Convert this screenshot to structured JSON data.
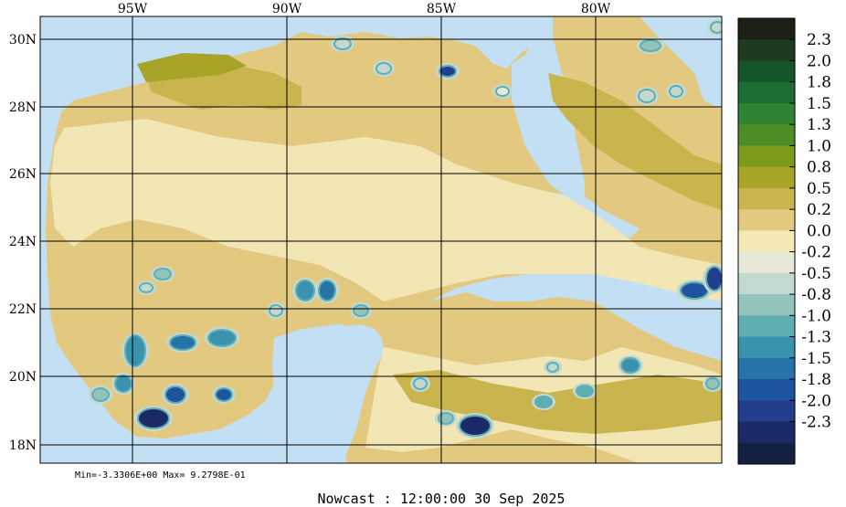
{
  "map": {
    "lon_labels": [
      "95W",
      "90W",
      "85W",
      "80W"
    ],
    "lat_labels": [
      "30N",
      "28N",
      "26N",
      "24N",
      "22N",
      "20N",
      "18N"
    ],
    "stats": "Min=-3.3306E+00  Max= 9.2798E-01",
    "footer": "Nowcast : 12:00:00  30 Sep 2025"
  },
  "colorbar": {
    "labels": [
      "2.3",
      "2.0",
      "1.8",
      "1.5",
      "1.3",
      "1.0",
      "0.8",
      "0.5",
      "0.2",
      "0.0",
      "-0.2",
      "-0.5",
      "-0.8",
      "-1.0",
      "-1.3",
      "-1.5",
      "-1.8",
      "-2.0",
      "-2.3"
    ],
    "colors": [
      "#1c2118",
      "#1e3b22",
      "#14542a",
      "#1c6e34",
      "#2f8433",
      "#4e8c26",
      "#7d9a1a",
      "#a8a428",
      "#c9b44e",
      "#e2c97f",
      "#f4e9b4",
      "#e6e8d8",
      "#c3d9cf",
      "#93c3bd",
      "#5faeb1",
      "#3a93ae",
      "#2673a8",
      "#1f55a0",
      "#223e8c",
      "#1c2b68",
      "#142040"
    ]
  },
  "colors": {
    "water": "#c3dff4",
    "land_light": "#f2e6b5",
    "land_mid": "#e2c97f",
    "land_dark": "#c9b44e",
    "land_olive": "#a8a428"
  }
}
